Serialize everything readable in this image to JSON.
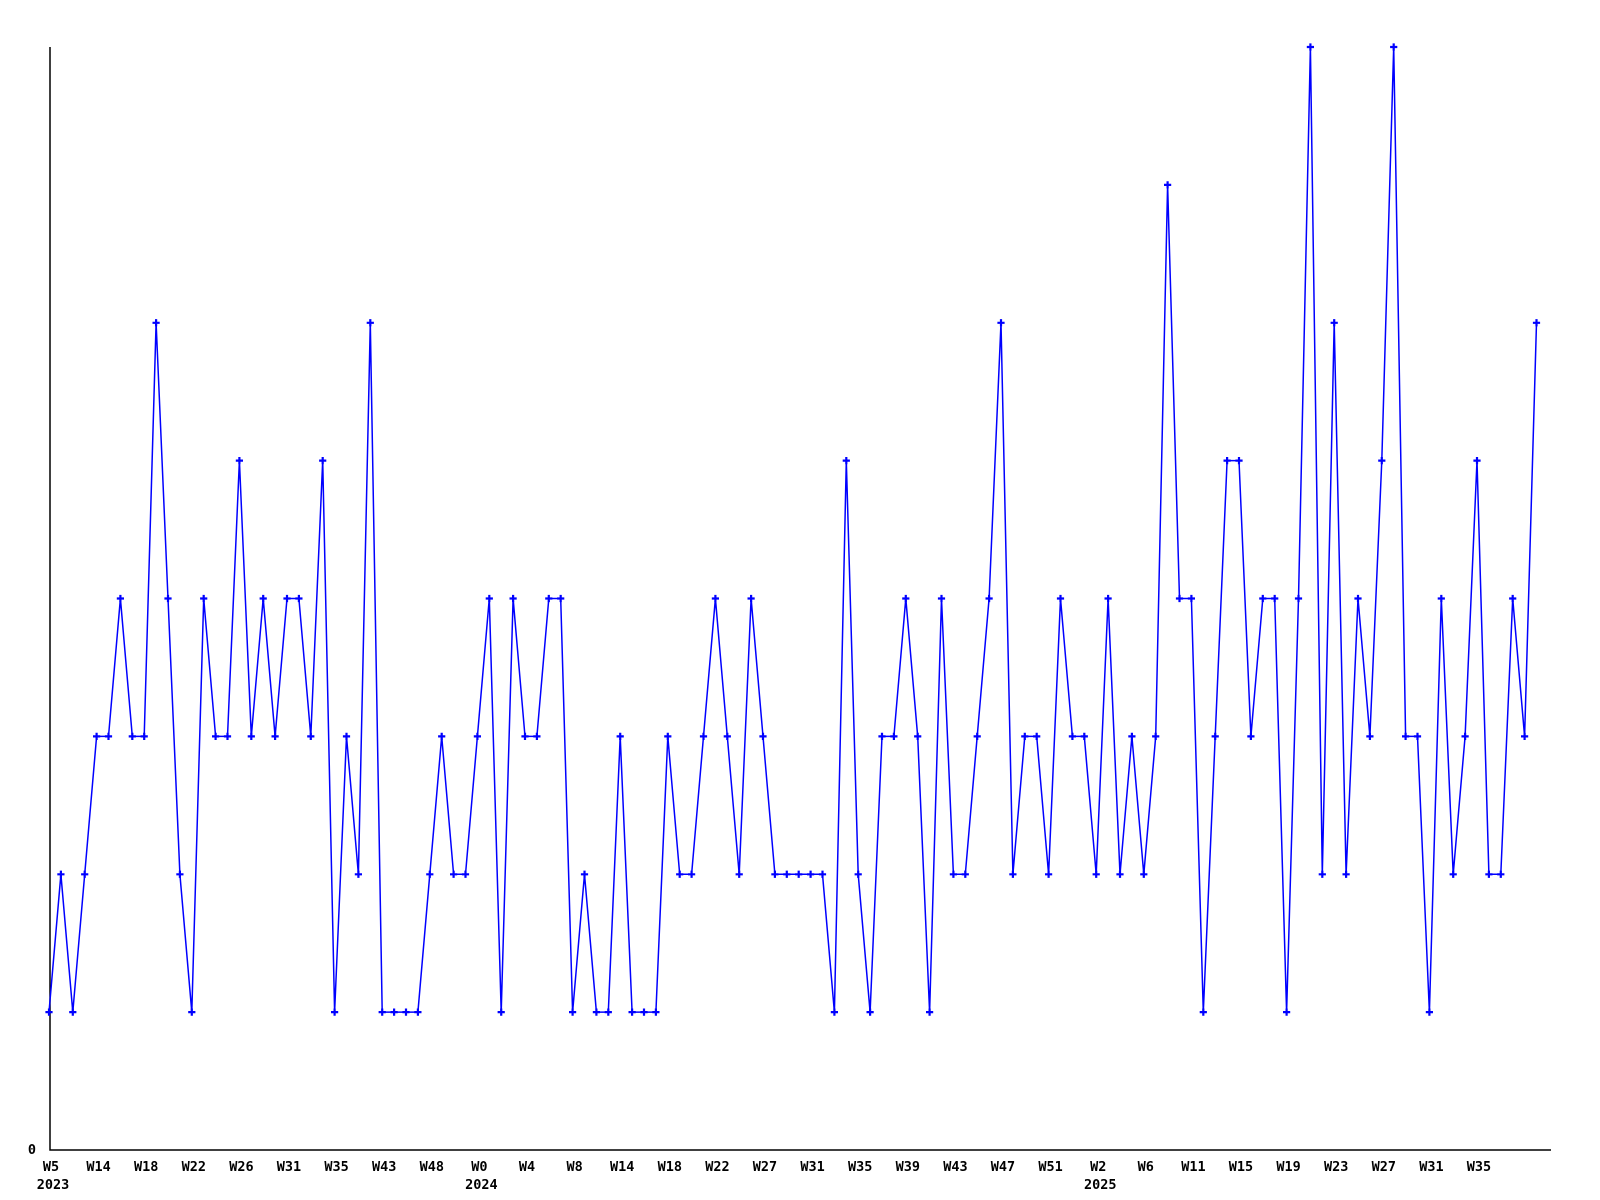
{
  "chart_data": {
    "type": "line",
    "title": "",
    "xlabel": "",
    "ylabel": "",
    "legend": "none",
    "grid": false,
    "series_color": "#0000ff",
    "axis_color": "#000000",
    "marker_style": "plus",
    "y_axis": {
      "min": 0,
      "max_displayed": 8,
      "visible_labels": [
        "0"
      ]
    },
    "values": [
      1,
      2,
      1,
      2,
      3,
      3,
      4,
      3,
      3,
      6,
      4,
      2,
      1,
      4,
      3,
      3,
      5,
      3,
      4,
      3,
      4,
      4,
      3,
      5,
      1,
      3,
      2,
      6,
      1,
      1,
      1,
      1,
      2,
      3,
      2,
      2,
      3,
      4,
      1,
      4,
      3,
      3,
      4,
      4,
      1,
      2,
      1,
      1,
      3,
      1,
      1,
      1,
      3,
      2,
      2,
      3,
      4,
      3,
      2,
      4,
      3,
      2,
      2,
      2,
      2,
      2,
      1,
      5,
      2,
      1,
      3,
      3,
      4,
      3,
      1,
      4,
      2,
      2,
      3,
      4,
      6,
      2,
      3,
      3,
      2,
      4,
      3,
      3,
      2,
      4,
      2,
      3,
      2,
      3,
      7,
      4,
      4,
      1,
      3,
      5,
      5,
      3,
      4,
      4,
      1,
      4,
      8,
      2,
      6,
      2,
      4,
      3,
      5,
      8,
      3,
      3,
      1,
      4,
      2,
      3,
      5,
      2,
      2,
      4,
      3,
      6
    ],
    "x_tick_labels": [
      {
        "label": "W5",
        "point": 0
      },
      {
        "label": "W14",
        "point": 4
      },
      {
        "label": "W18",
        "point": 8
      },
      {
        "label": "W22",
        "point": 12
      },
      {
        "label": "W26",
        "point": 16
      },
      {
        "label": "W31",
        "point": 20
      },
      {
        "label": "W35",
        "point": 24
      },
      {
        "label": "W43",
        "point": 28
      },
      {
        "label": "W48",
        "point": 32
      },
      {
        "label": "W0",
        "point": 36
      },
      {
        "label": "W4",
        "point": 40
      },
      {
        "label": "W8",
        "point": 44
      },
      {
        "label": "W14",
        "point": 48
      },
      {
        "label": "W18",
        "point": 52
      },
      {
        "label": "W22",
        "point": 56
      },
      {
        "label": "W27",
        "point": 60
      },
      {
        "label": "W31",
        "point": 64
      },
      {
        "label": "W35",
        "point": 68
      },
      {
        "label": "W39",
        "point": 72
      },
      {
        "label": "W43",
        "point": 76
      },
      {
        "label": "W47",
        "point": 80
      },
      {
        "label": "W51",
        "point": 84
      },
      {
        "label": "W2",
        "point": 88
      },
      {
        "label": "W6",
        "point": 92
      },
      {
        "label": "W11",
        "point": 96
      },
      {
        "label": "W15",
        "point": 100
      },
      {
        "label": "W19",
        "point": 104
      },
      {
        "label": "W23",
        "point": 108
      },
      {
        "label": "W27",
        "point": 112
      },
      {
        "label": "W31",
        "point": 116
      },
      {
        "label": "W35",
        "point": 120
      }
    ],
    "year_labels": [
      {
        "text": "2023",
        "point": 0
      },
      {
        "text": "2024",
        "point": 36
      },
      {
        "text": "2025",
        "point": 88
      }
    ]
  }
}
